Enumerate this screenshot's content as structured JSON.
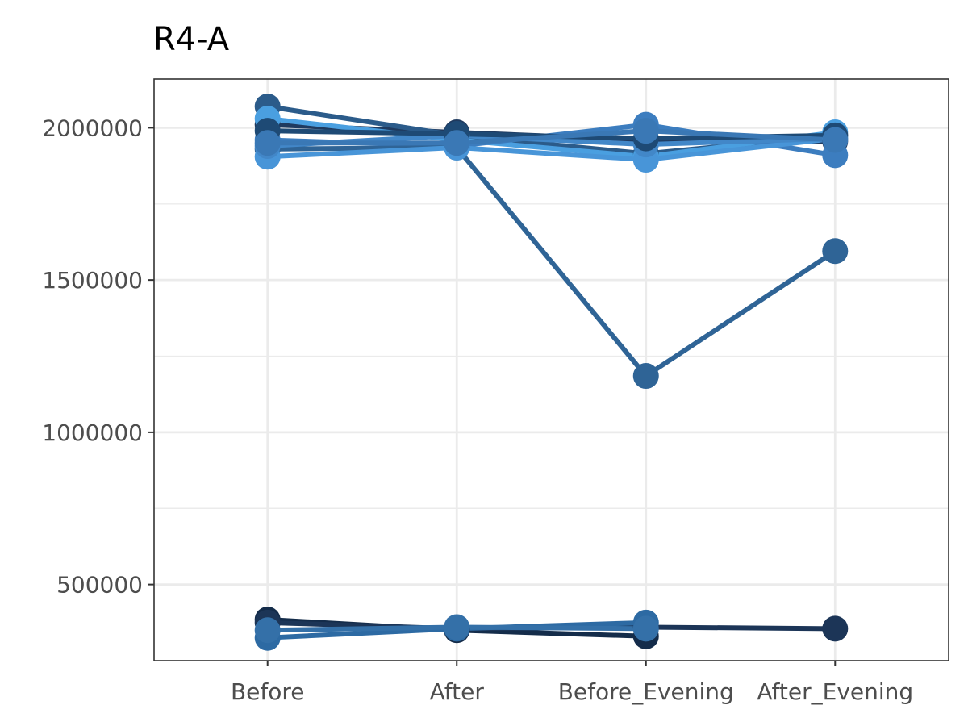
{
  "chart_data": {
    "type": "line",
    "title": "R4-A",
    "xlabel": "",
    "ylabel": "",
    "categories": [
      "Before",
      "After",
      "Before_Evening",
      "After_Evening"
    ],
    "ylim": [
      250000,
      2160000
    ],
    "yticks": [
      500000,
      1000000,
      1500000,
      2000000
    ],
    "ytick_labels": [
      "500000",
      "1000000",
      "1500000",
      "2000000"
    ],
    "grid": true,
    "legend": "none",
    "series": [
      {
        "color": "#1f3a5f",
        "values": [
          2010000,
          1985000,
          1960000,
          1955000
        ]
      },
      {
        "color": "#2b5b8a",
        "values": [
          2070000,
          1975000,
          1915000,
          1975000
        ]
      },
      {
        "color": "#4a9fe0",
        "values": [
          2030000,
          1960000,
          1905000,
          1985000
        ]
      },
      {
        "color": "#3c7dbf",
        "values": [
          1960000,
          1940000,
          2010000,
          1910000
        ]
      },
      {
        "color": "#2f6496",
        "values": [
          1930000,
          1935000,
          1185000,
          1595000
        ]
      },
      {
        "color": "#4895d8",
        "values": [
          1905000,
          1935000,
          1895000,
          1965000
        ]
      },
      {
        "color": "#4287c8",
        "values": [
          1940000,
          1975000,
          1945000,
          1965000
        ]
      },
      {
        "color": "#1e4a75",
        "values": [
          1990000,
          1980000,
          1965000,
          1975000
        ]
      },
      {
        "color": "#3a78b5",
        "values": [
          1950000,
          1950000,
          1990000,
          1960000
        ]
      },
      {
        "color": "#142c4a",
        "values": [
          385000,
          350000,
          330000,
          null
        ]
      },
      {
        "color": "#1c3557",
        "values": [
          375000,
          355000,
          360000,
          355000
        ]
      },
      {
        "color": "#2d6aa3",
        "values": [
          325000,
          355000,
          375000,
          null
        ]
      },
      {
        "color": "#3470a8",
        "values": [
          350000,
          360000,
          355000,
          null
        ]
      }
    ]
  }
}
